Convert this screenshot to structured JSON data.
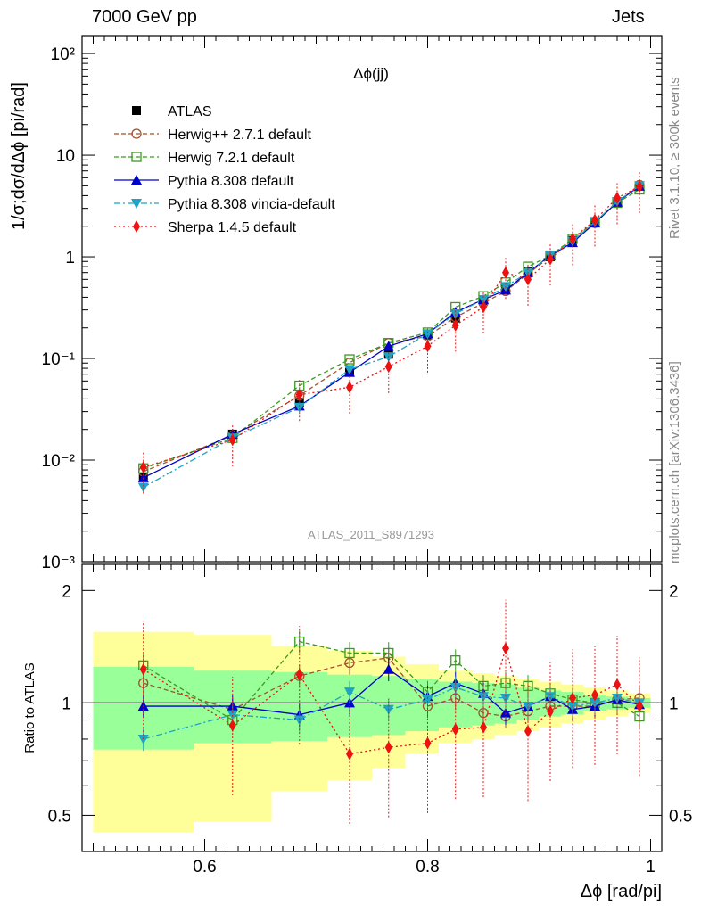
{
  "header": {
    "beam_label": "7000 GeV pp",
    "process_label": "Jets"
  },
  "side_labels": {
    "rivet": "Rivet 3.1.10, ≥ 300k events",
    "mcplots": "mcplots.cern.ch [arXiv:1306.3436]"
  },
  "chart_data": [
    {
      "type": "line",
      "panel": "main",
      "title": "Δϕ(jj)",
      "analysis_label": "ATLAS_2011_S8971293",
      "ylabel": "1/σ;dσ/dΔϕ [pi/rad]",
      "yscale": "log",
      "ylim": [
        0.001,
        150
      ],
      "xlim": [
        0.49,
        1.01
      ],
      "y_ticks": [
        "10⁻³",
        "10⁻²",
        "10⁻¹",
        "1",
        "10",
        "10²"
      ],
      "legend_position": "top-left",
      "x": [
        0.545,
        0.625,
        0.685,
        0.73,
        0.765,
        0.8,
        0.825,
        0.85,
        0.87,
        0.89,
        0.91,
        0.93,
        0.95,
        0.97,
        0.99
      ],
      "series": [
        {
          "name": "ATLAS",
          "color": "#000000",
          "marker": "square",
          "values": [
            0.0068,
            0.018,
            0.037,
            0.073,
            0.11,
            0.17,
            0.25,
            0.37,
            0.5,
            0.72,
            1.0,
            1.45,
            2.2,
            3.4,
            5.0
          ]
        },
        {
          "name": "Herwig++ 2.7.1 default",
          "color": "#a0522d",
          "marker": "open-circle",
          "values": [
            0.0077,
            0.0175,
            0.043,
            0.091,
            0.142,
            0.165,
            0.255,
            0.35,
            0.46,
            0.68,
            1.0,
            1.4,
            2.15,
            3.45,
            5.1
          ]
        },
        {
          "name": "Herwig 7.2.1 default",
          "color": "#3a9a20",
          "marker": "open-square",
          "values": [
            0.0083,
            0.0165,
            0.054,
            0.098,
            0.142,
            0.18,
            0.32,
            0.41,
            0.56,
            0.8,
            1.03,
            1.5,
            2.2,
            3.4,
            4.6
          ]
        },
        {
          "name": "Pythia 8.308 default",
          "color": "#0000cc",
          "marker": "triangle-up",
          "values": [
            0.0067,
            0.018,
            0.034,
            0.073,
            0.132,
            0.175,
            0.285,
            0.38,
            0.47,
            0.7,
            1.03,
            1.38,
            2.15,
            3.45,
            4.95
          ]
        },
        {
          "name": "Pythia 8.308 vincia-default",
          "color": "#1fa3c4",
          "marker": "triangle-down",
          "values": [
            0.0054,
            0.0165,
            0.033,
            0.078,
            0.104,
            0.175,
            0.275,
            0.38,
            0.51,
            0.7,
            1.03,
            1.42,
            2.2,
            3.5,
            5.0
          ]
        },
        {
          "name": "Sherpa 1.4.5 default",
          "color": "#ee1111",
          "marker": "diamond",
          "values": [
            0.0085,
            0.0158,
            0.044,
            0.052,
            0.083,
            0.132,
            0.212,
            0.32,
            0.7,
            0.6,
            0.95,
            1.5,
            2.3,
            3.8,
            4.9
          ]
        }
      ]
    },
    {
      "type": "line",
      "panel": "ratio",
      "ylabel": "Ratio to ATLAS",
      "xlabel": "Δϕ [rad/pi]",
      "ylim": [
        0.4,
        2.35
      ],
      "xlim": [
        0.49,
        1.01
      ],
      "x_ticks": [
        "0.6",
        "0.8",
        "1"
      ],
      "y_ticks": [
        "0.5",
        "1",
        "2"
      ],
      "x": [
        0.545,
        0.625,
        0.685,
        0.73,
        0.765,
        0.8,
        0.825,
        0.85,
        0.87,
        0.89,
        0.91,
        0.93,
        0.95,
        0.97,
        0.99
      ],
      "bin_edges": [
        0.5,
        0.59,
        0.66,
        0.71,
        0.75,
        0.78,
        0.81,
        0.84,
        0.86,
        0.88,
        0.9,
        0.92,
        0.94,
        0.96,
        0.98,
        1.0
      ],
      "band_inner": [
        0.25,
        0.22,
        0.21,
        0.19,
        0.18,
        0.16,
        0.14,
        0.13,
        0.12,
        0.1,
        0.08,
        0.07,
        0.05,
        0.04,
        0.03
      ],
      "band_outer": [
        0.55,
        0.52,
        0.42,
        0.38,
        0.33,
        0.27,
        0.22,
        0.2,
        0.18,
        0.16,
        0.14,
        0.12,
        0.1,
        0.08,
        0.06
      ],
      "series": [
        {
          "name": "Herwig++ 2.7.1 default",
          "color": "#a0522d",
          "values": [
            1.13,
            0.96,
            1.18,
            1.28,
            1.32,
            0.98,
            1.03,
            0.94,
            0.92,
            0.95,
            0.98,
            0.98,
            0.98,
            1.02,
            1.03
          ]
        },
        {
          "name": "Herwig 7.2.1 default",
          "color": "#3a9a20",
          "values": [
            1.26,
            0.9,
            1.46,
            1.36,
            1.36,
            1.07,
            1.3,
            1.11,
            1.13,
            1.11,
            1.06,
            1.02,
            1.0,
            1.0,
            0.92
          ]
        },
        {
          "name": "Pythia 8.308 default",
          "color": "#0000cc",
          "values": [
            0.98,
            0.98,
            0.93,
            1.0,
            1.23,
            1.04,
            1.13,
            1.06,
            0.94,
            0.98,
            1.04,
            0.96,
            0.98,
            1.02,
            0.99
          ]
        },
        {
          "name": "Pythia 8.308 vincia-default",
          "color": "#1fa3c4",
          "values": [
            0.8,
            0.93,
            0.9,
            1.07,
            0.96,
            1.02,
            1.1,
            1.04,
            1.03,
            0.98,
            1.04,
            0.98,
            1.0,
            1.03,
            1.0
          ]
        },
        {
          "name": "Sherpa 1.4.5 default",
          "color": "#ee1111",
          "values": [
            1.23,
            0.87,
            1.19,
            0.73,
            0.76,
            0.78,
            0.85,
            0.86,
            1.4,
            0.84,
            0.95,
            1.03,
            1.05,
            1.12,
            0.98
          ]
        }
      ]
    }
  ]
}
